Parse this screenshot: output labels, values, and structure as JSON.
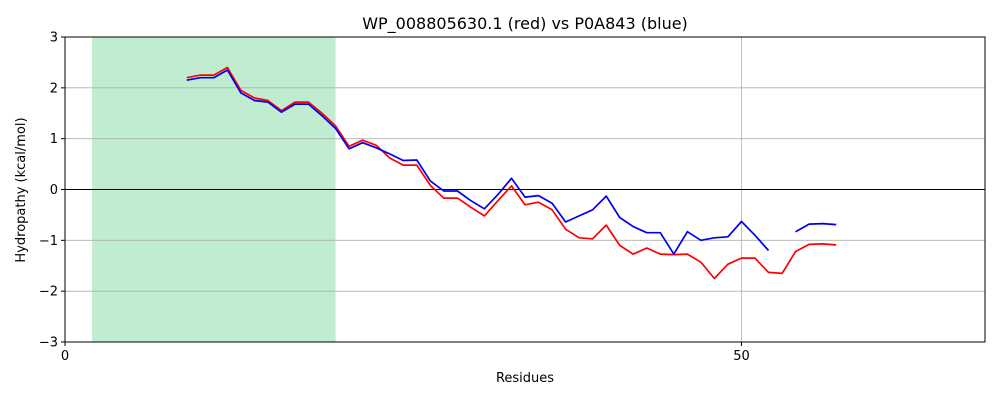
{
  "chart_data": {
    "type": "line",
    "title": "WP_008805630.1 (red) vs P0A843 (blue)",
    "xlabel": "Residues",
    "ylabel": "Hydropathy (kcal/mol)",
    "xlim": [
      0,
      68
    ],
    "ylim": [
      -3,
      3
    ],
    "x_ticks": [
      0,
      50
    ],
    "y_ticks": [
      -3,
      -2,
      -1,
      0,
      1,
      2,
      3
    ],
    "grid": true,
    "zero_line": true,
    "highlight_region": {
      "x_start": 2,
      "x_end": 20,
      "color": "#c0ecd0"
    },
    "series": [
      {
        "color": "#ff0000",
        "x": [
          9,
          10,
          11,
          12,
          13,
          14,
          15,
          16,
          17,
          18,
          19,
          20,
          21,
          22,
          23,
          24,
          25,
          26,
          27,
          28,
          29,
          30,
          31,
          32,
          33,
          34,
          35,
          36,
          37,
          38,
          39,
          40,
          41,
          42,
          43,
          44,
          45,
          46,
          47,
          48,
          49,
          50,
          51,
          52,
          53,
          54,
          55,
          56,
          57
        ],
        "y": [
          2.2,
          2.25,
          2.25,
          2.4,
          1.95,
          1.8,
          1.75,
          1.55,
          1.72,
          1.72,
          1.5,
          1.25,
          0.85,
          0.97,
          0.87,
          0.62,
          0.48,
          0.48,
          0.08,
          -0.17,
          -0.17,
          -0.35,
          -0.52,
          -0.22,
          0.07,
          -0.3,
          -0.25,
          -0.4,
          -0.78,
          -0.95,
          -0.97,
          -0.7,
          -1.1,
          -1.27,
          -1.15,
          -1.27,
          -1.28,
          -1.27,
          -1.43,
          -1.75,
          -1.47,
          -1.35,
          -1.35,
          -1.63,
          -1.65,
          -1.22,
          -1.08,
          -1.07,
          -1.09
        ]
      },
      {
        "color": "#0000ee",
        "x": [
          9,
          10,
          11,
          12,
          13,
          14,
          15,
          16,
          17,
          18,
          19,
          20,
          21,
          22,
          23,
          24,
          25,
          26,
          27,
          28,
          29,
          30,
          31,
          32,
          33,
          34,
          35,
          36,
          37,
          38,
          39,
          40,
          41,
          42,
          43,
          44,
          45,
          46,
          47,
          48,
          49,
          50,
          51,
          52,
          null,
          54,
          55,
          56,
          57
        ],
        "y": [
          2.15,
          2.2,
          2.2,
          2.35,
          1.9,
          1.75,
          1.72,
          1.52,
          1.68,
          1.68,
          1.45,
          1.2,
          0.8,
          0.92,
          0.82,
          0.7,
          0.57,
          0.58,
          0.17,
          -0.03,
          -0.03,
          -0.22,
          -0.38,
          -0.1,
          0.22,
          -0.15,
          -0.12,
          -0.27,
          -0.64,
          -0.52,
          -0.4,
          -0.13,
          -0.55,
          -0.73,
          -0.85,
          -0.85,
          -1.27,
          -0.83,
          -1.0,
          -0.95,
          -0.93,
          -0.63,
          -0.9,
          -1.2,
          null,
          -0.83,
          -0.68,
          -0.67,
          -0.69
        ]
      }
    ]
  }
}
